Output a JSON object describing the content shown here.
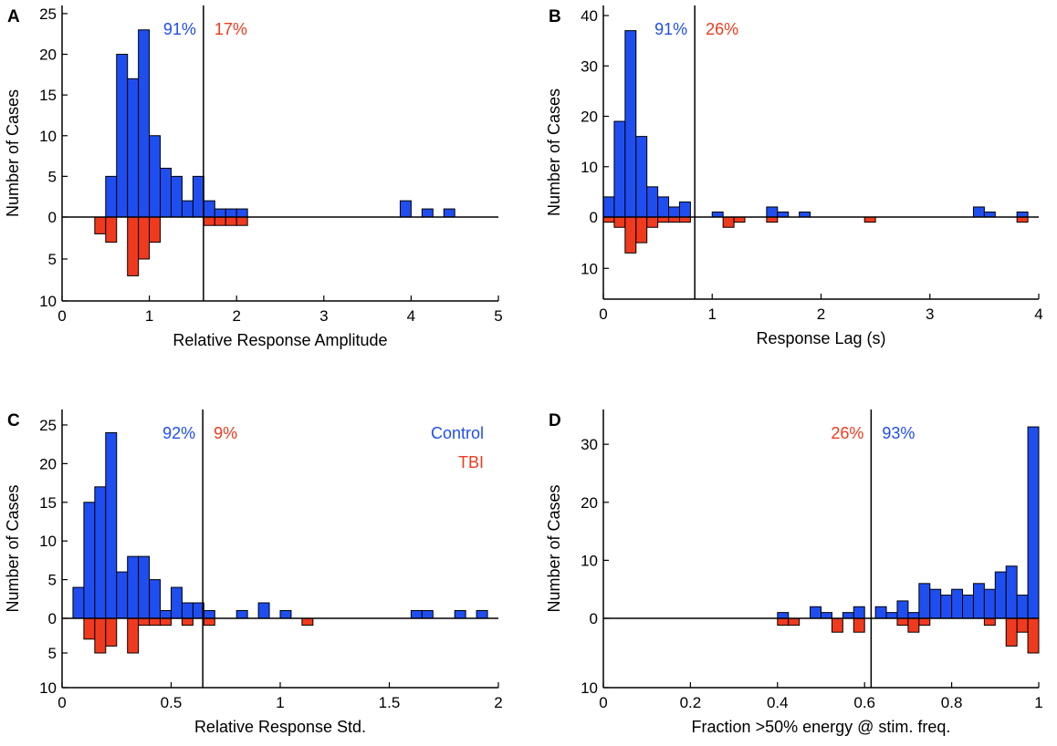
{
  "colors": {
    "control": "#1f4ef0",
    "tbi": "#f03a1e",
    "axis": "#000000"
  },
  "ylabel": "Number of Cases",
  "legend": {
    "control": "Control",
    "tbi": "TBI"
  },
  "chart_data": [
    {
      "type": "bar",
      "panel": "A",
      "xlabel": "Relative Response Amplitude",
      "xlim": [
        0,
        5
      ],
      "xticks": [
        "0",
        "1",
        "2",
        "3",
        "4",
        "5"
      ],
      "ylim_up": 26,
      "ylim_down": 10,
      "yticks_up": [
        "5",
        "10",
        "15",
        "20",
        "25"
      ],
      "yticks_down": [
        "5",
        "10"
      ],
      "zero_tick": "0",
      "bin_width": 0.125,
      "threshold": 1.62,
      "pct_left": {
        "text": "91%",
        "group": "control"
      },
      "pct_right": {
        "text": "17%",
        "group": "tbi"
      },
      "control": [
        [
          0.5,
          5
        ],
        [
          0.625,
          20
        ],
        [
          0.75,
          17
        ],
        [
          0.875,
          23
        ],
        [
          1.0,
          10
        ],
        [
          1.125,
          6
        ],
        [
          1.25,
          5
        ],
        [
          1.375,
          2
        ],
        [
          1.5,
          5
        ],
        [
          1.625,
          2
        ],
        [
          1.75,
          1
        ],
        [
          1.875,
          1
        ],
        [
          2.0,
          1
        ],
        [
          3.875,
          2
        ],
        [
          4.125,
          1
        ],
        [
          4.375,
          1
        ]
      ],
      "tbi": [
        [
          0.375,
          2
        ],
        [
          0.5,
          3
        ],
        [
          0.75,
          7
        ],
        [
          0.875,
          5
        ],
        [
          1.0,
          3
        ],
        [
          1.625,
          1
        ],
        [
          1.75,
          1
        ],
        [
          1.875,
          1
        ],
        [
          2.0,
          1
        ]
      ]
    },
    {
      "type": "bar",
      "panel": "B",
      "xlabel": "Response Lag (s)",
      "xlim": [
        0,
        4
      ],
      "xticks": [
        "0",
        "1",
        "2",
        "3",
        "4"
      ],
      "ylim_up": 42,
      "ylim_down": 16,
      "yticks_up": [
        "10",
        "20",
        "30",
        "40"
      ],
      "yticks_down": [
        "10"
      ],
      "zero_tick": "0",
      "bin_width": 0.1,
      "threshold": 0.84,
      "pct_left": {
        "text": "91%",
        "group": "control"
      },
      "pct_right": {
        "text": "26%",
        "group": "tbi"
      },
      "control": [
        [
          0.0,
          4
        ],
        [
          0.1,
          19
        ],
        [
          0.2,
          37
        ],
        [
          0.3,
          16
        ],
        [
          0.4,
          6
        ],
        [
          0.5,
          4
        ],
        [
          0.6,
          2
        ],
        [
          0.7,
          3
        ],
        [
          1.0,
          1
        ],
        [
          1.5,
          2
        ],
        [
          1.6,
          1
        ],
        [
          1.8,
          1
        ],
        [
          3.4,
          2
        ],
        [
          3.5,
          1
        ],
        [
          3.8,
          1
        ]
      ],
      "tbi": [
        [
          0.0,
          1
        ],
        [
          0.1,
          2
        ],
        [
          0.2,
          7
        ],
        [
          0.3,
          5
        ],
        [
          0.4,
          2
        ],
        [
          0.5,
          1
        ],
        [
          0.6,
          1
        ],
        [
          0.7,
          1
        ],
        [
          1.1,
          2
        ],
        [
          1.2,
          1
        ],
        [
          1.5,
          1
        ],
        [
          2.4,
          1
        ],
        [
          3.8,
          1
        ]
      ]
    },
    {
      "type": "bar",
      "panel": "C",
      "xlabel": "Relative Response Std.",
      "xlim": [
        0,
        2
      ],
      "xticks": [
        "0",
        "0.5",
        "1",
        "1.5",
        "2"
      ],
      "ylim_up": 27,
      "ylim_down": 10,
      "yticks_up": [
        "5",
        "10",
        "15",
        "20",
        "25"
      ],
      "yticks_down": [
        "5",
        "10"
      ],
      "zero_tick": "0",
      "bin_width": 0.05,
      "threshold": 0.645,
      "pct_left": {
        "text": "92%",
        "group": "control"
      },
      "pct_right": {
        "text": "9%",
        "group": "tbi"
      },
      "control": [
        [
          0.05,
          4
        ],
        [
          0.1,
          15
        ],
        [
          0.15,
          17
        ],
        [
          0.2,
          24
        ],
        [
          0.25,
          6
        ],
        [
          0.3,
          8
        ],
        [
          0.35,
          8
        ],
        [
          0.4,
          5
        ],
        [
          0.45,
          1
        ],
        [
          0.5,
          4
        ],
        [
          0.55,
          2
        ],
        [
          0.6,
          2
        ],
        [
          0.65,
          1
        ],
        [
          0.8,
          1
        ],
        [
          0.9,
          2
        ],
        [
          1.0,
          1
        ],
        [
          1.6,
          1
        ],
        [
          1.65,
          1
        ],
        [
          1.8,
          1
        ],
        [
          1.9,
          1
        ]
      ],
      "tbi": [
        [
          0.1,
          3
        ],
        [
          0.15,
          5
        ],
        [
          0.2,
          4
        ],
        [
          0.3,
          5
        ],
        [
          0.35,
          1
        ],
        [
          0.4,
          1
        ],
        [
          0.45,
          1
        ],
        [
          0.55,
          1
        ],
        [
          0.65,
          1
        ],
        [
          1.1,
          1
        ]
      ]
    },
    {
      "type": "bar",
      "panel": "D",
      "xlabel": "Fraction >50% energy @ stim. freq.",
      "xlim": [
        0,
        1
      ],
      "xticks": [
        "0",
        "0.2",
        "0.4",
        "0.6",
        "0.8",
        "1"
      ],
      "ylim_up": 36,
      "ylim_down": 10,
      "yticks_up": [
        "10",
        "20",
        "30"
      ],
      "yticks_down": [
        "10"
      ],
      "zero_tick": "0",
      "bin_width": 0.025,
      "threshold": 0.615,
      "pct_left": {
        "text": "26%",
        "group": "tbi"
      },
      "pct_right": {
        "text": "93%",
        "group": "control"
      },
      "control": [
        [
          0.4,
          1
        ],
        [
          0.45,
          0
        ],
        [
          0.475,
          2
        ],
        [
          0.5,
          1
        ],
        [
          0.55,
          1
        ],
        [
          0.575,
          2
        ],
        [
          0.625,
          2
        ],
        [
          0.65,
          1
        ],
        [
          0.675,
          3
        ],
        [
          0.7,
          1
        ],
        [
          0.725,
          6
        ],
        [
          0.75,
          5
        ],
        [
          0.775,
          4
        ],
        [
          0.8,
          5
        ],
        [
          0.825,
          4
        ],
        [
          0.85,
          6
        ],
        [
          0.875,
          5
        ],
        [
          0.9,
          8
        ],
        [
          0.925,
          9
        ],
        [
          0.95,
          4
        ],
        [
          0.975,
          33
        ]
      ],
      "tbi": [
        [
          0.4,
          1
        ],
        [
          0.425,
          1
        ],
        [
          0.525,
          2
        ],
        [
          0.575,
          2
        ],
        [
          0.675,
          1
        ],
        [
          0.7,
          2
        ],
        [
          0.725,
          1
        ],
        [
          0.875,
          1
        ],
        [
          0.925,
          4
        ],
        [
          0.95,
          2
        ],
        [
          0.975,
          5
        ]
      ]
    }
  ]
}
